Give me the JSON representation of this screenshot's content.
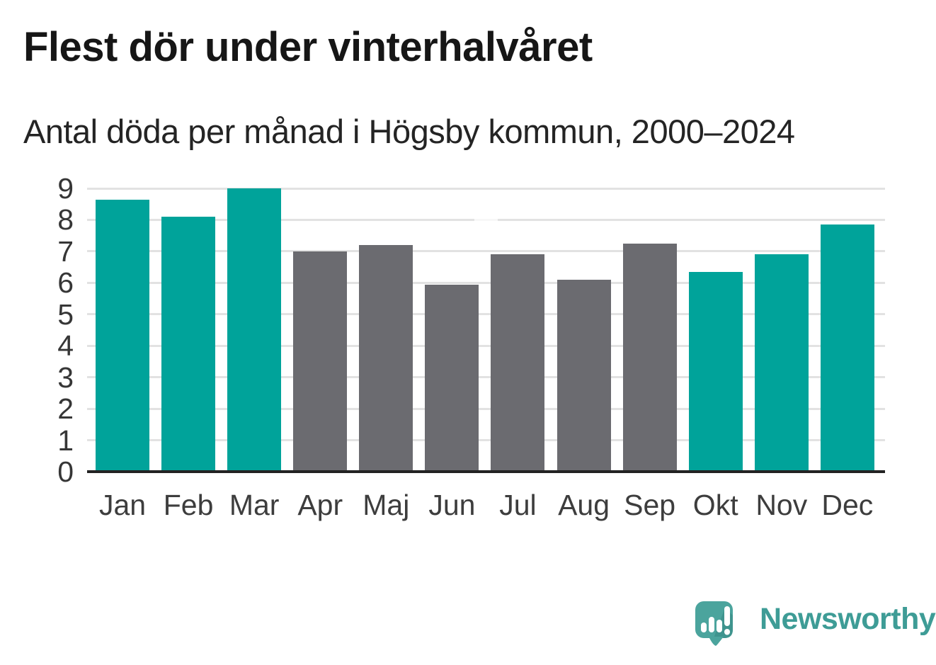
{
  "title": "Flest dör under vinterhalvåret",
  "subtitle": "Antal döda per månad i Högsby kommun, 2000–2024",
  "chart_data": {
    "type": "bar",
    "title": "Flest dör under vinterhalvåret",
    "subtitle": "Antal döda per månad i Högsby kommun, 2000–2024",
    "categories": [
      "Jan",
      "Feb",
      "Mar",
      "Apr",
      "Maj",
      "Jun",
      "Jul",
      "Aug",
      "Sep",
      "Okt",
      "Nov",
      "Dec"
    ],
    "values": [
      8.65,
      8.1,
      9.0,
      7.0,
      7.2,
      5.95,
      6.9,
      6.1,
      7.25,
      6.35,
      6.9,
      7.85
    ],
    "bar_colors": [
      "#00a39a",
      "#00a39a",
      "#00a39a",
      "#6b6b70",
      "#6b6b70",
      "#6b6b70",
      "#6b6b70",
      "#6b6b70",
      "#6b6b70",
      "#00a39a",
      "#00a39a",
      "#00a39a"
    ],
    "highlighted_months": [
      "Jan",
      "Feb",
      "Mar",
      "Okt",
      "Nov",
      "Dec"
    ],
    "xlabel": "",
    "ylabel": "",
    "ylim": [
      0,
      9
    ],
    "yticks": [
      0,
      1,
      2,
      3,
      4,
      5,
      6,
      7,
      8,
      9
    ],
    "grid": true,
    "legend": false
  },
  "colors": {
    "winter_bar": "#00a39a",
    "summer_bar": "#6b6b70",
    "gridline": "#e2e2e2",
    "axis_line": "#232323",
    "title_text": "#161616",
    "tick_label": "#3d3d3d",
    "logo_bubble": "#4ba49d",
    "logo_bubble_shade": "#3f948e",
    "wordmark_text": "#3e9c96"
  },
  "branding": {
    "wordmark": "Newsworthy",
    "icon": "speech-bubble-with-bar-chart-and-exclamation"
  }
}
